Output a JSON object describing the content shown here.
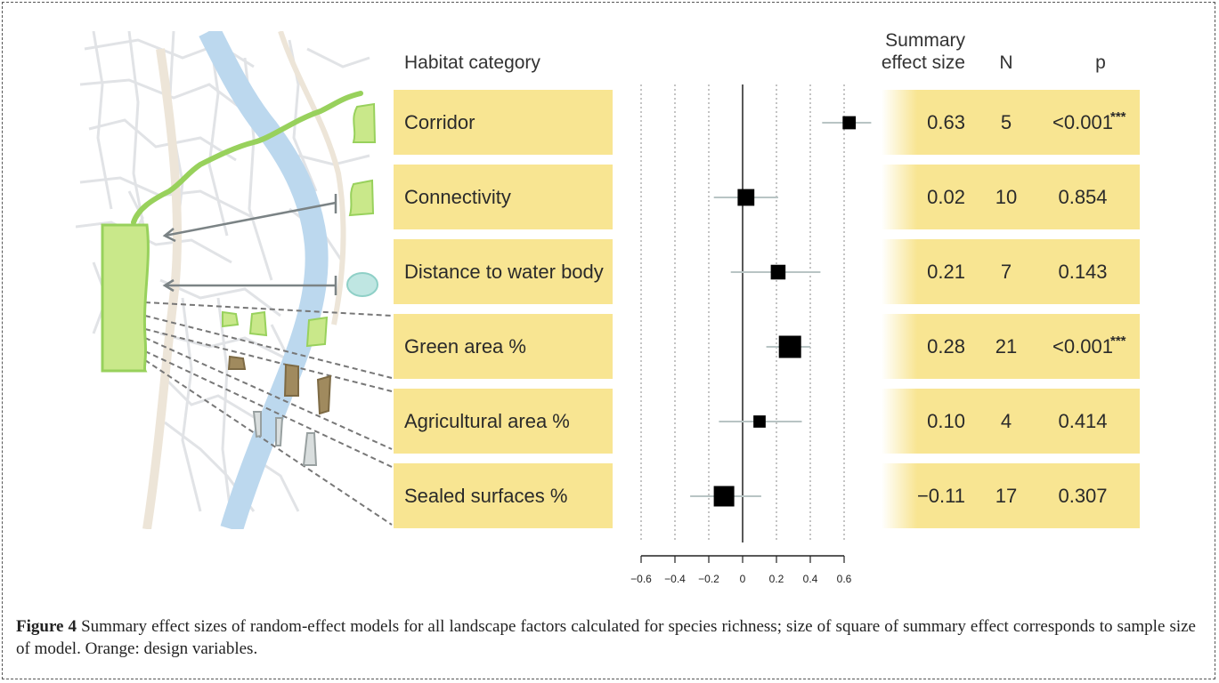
{
  "header": {
    "habitat": "Habitat category",
    "summary_line1": "Summary",
    "summary_line2": "effect size",
    "n": "N",
    "p": "p"
  },
  "rows": [
    {
      "category": "Corridor",
      "effect": "0.63",
      "n": "5",
      "p": "<0.001",
      "stars": "***"
    },
    {
      "category": "Connectivity",
      "effect": "0.02",
      "n": "10",
      "p": "0.854",
      "stars": ""
    },
    {
      "category": "Distance to water body",
      "effect": "0.21",
      "n": "7",
      "p": "0.143",
      "stars": ""
    },
    {
      "category": "Green area %",
      "effect": "0.28",
      "n": "21",
      "p": "<0.001",
      "stars": "***"
    },
    {
      "category": "Agricultural area %",
      "effect": "0.10",
      "n": "4",
      "p": "0.414",
      "stars": ""
    },
    {
      "category": "Sealed surfaces %",
      "effect": "−0.11",
      "n": "17",
      "p": "0.307",
      "stars": ""
    }
  ],
  "chart_data": {
    "type": "scatter",
    "subtype": "forest-plot",
    "categories": [
      "Corridor",
      "Connectivity",
      "Distance to water body",
      "Green area %",
      "Agricultural area %",
      "Sealed surfaces %"
    ],
    "effect": [
      0.63,
      0.02,
      0.21,
      0.28,
      0.1,
      -0.11
    ],
    "ci_low": [
      0.47,
      -0.17,
      -0.07,
      0.14,
      -0.14,
      -0.31
    ],
    "ci_high": [
      0.76,
      0.21,
      0.46,
      0.4,
      0.35,
      0.11
    ],
    "n": [
      5,
      10,
      7,
      21,
      4,
      17
    ],
    "xlim": [
      -0.6,
      0.6
    ],
    "xticks": [
      -0.6,
      -0.4,
      -0.2,
      0,
      0.2,
      0.4,
      0.6
    ],
    "xtick_labels": [
      "−0.6",
      "−0.4",
      "−0.2",
      "0",
      "0.2",
      "0.4",
      "0.6"
    ],
    "grid": true,
    "colors": {
      "band": "#f8e592",
      "marker": "#000000",
      "ci": "#b8c4c4",
      "grid": "#888888"
    }
  },
  "caption": {
    "label": "Figure 4",
    "text": " Summary effect sizes of random-effect models for all landscape factors calculated for species richness; size of square of summary effect corresponds to sample size of model. Orange: design variables."
  },
  "colors": {
    "river": "#bcd8ee",
    "green_patch": "#c9e88a",
    "green_stroke": "#98d15c",
    "corridor": "#98d15c",
    "agri": "#a08a5e",
    "sealed": "#d9dede",
    "water_body": "#bfe6e2"
  }
}
